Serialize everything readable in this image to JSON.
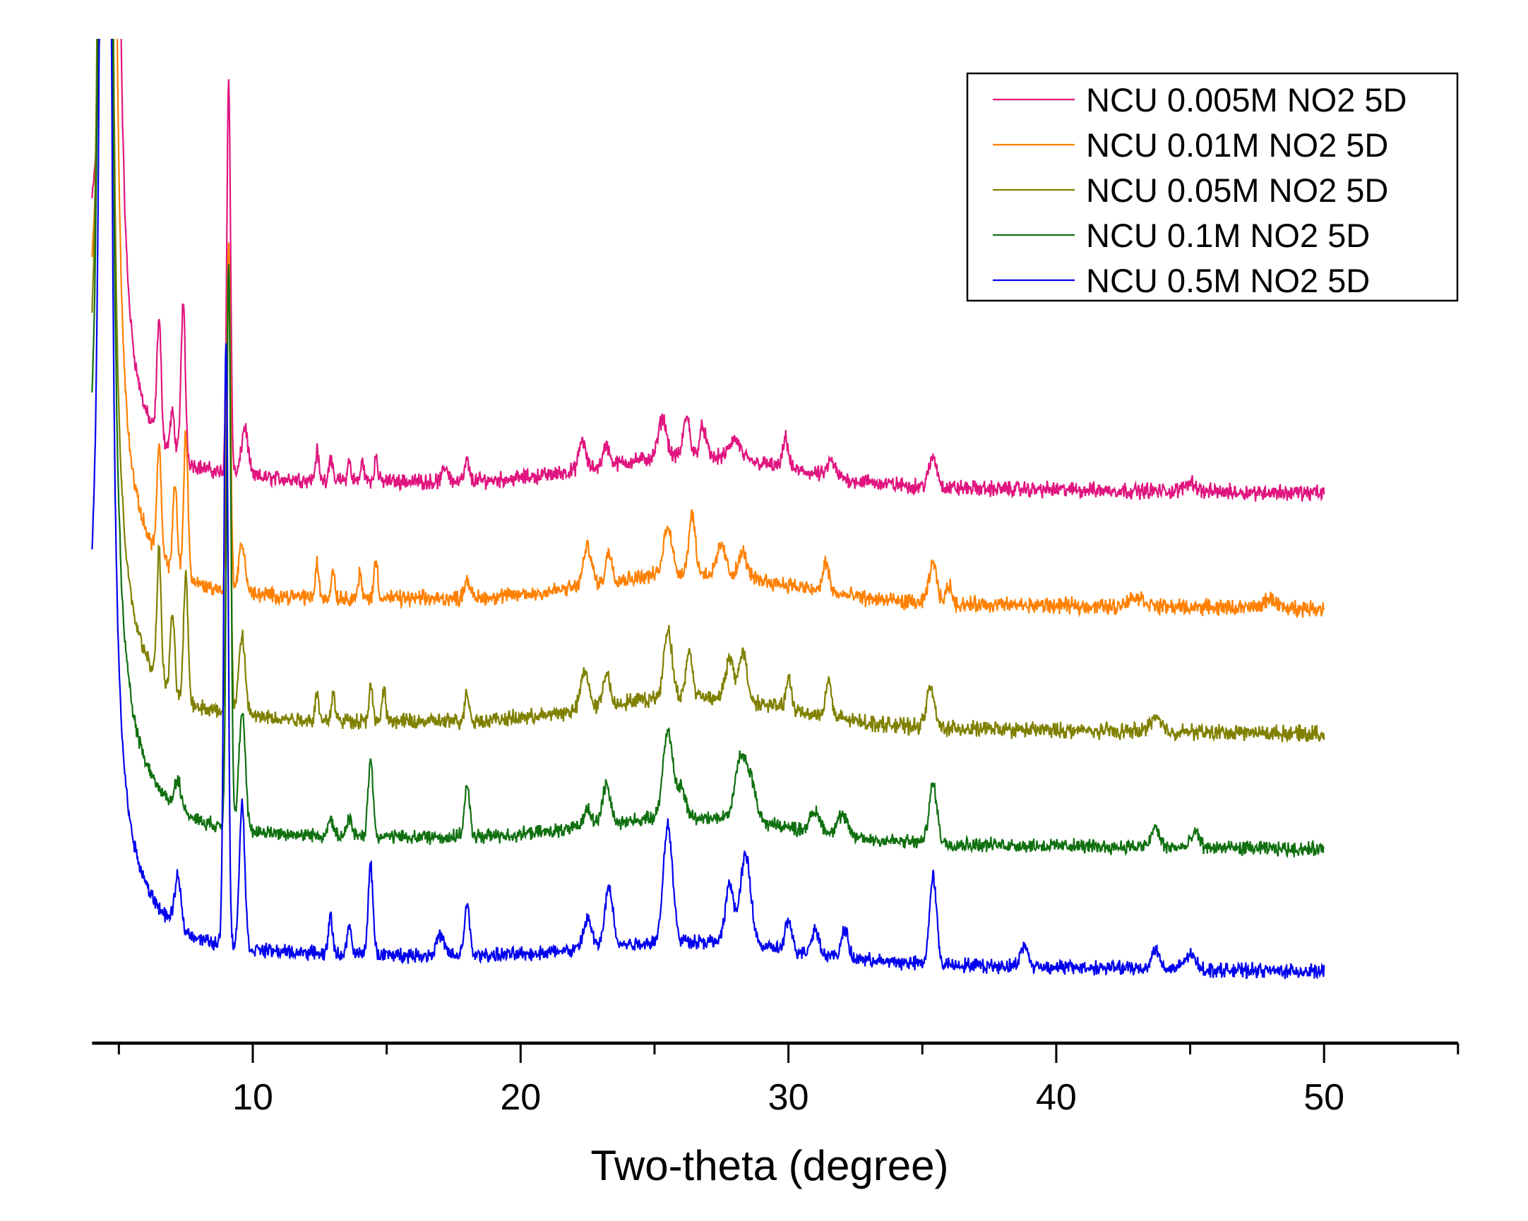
{
  "chart_data": {
    "type": "line",
    "title": "",
    "xlabel": "Two-theta (degree)",
    "ylabel": "",
    "xlim": [
      4,
      55
    ],
    "ylim": [
      0,
      102.6
    ],
    "x_range_data": [
      4,
      50
    ],
    "x_step": 0.02,
    "x_ticks_major": [
      10,
      20,
      30,
      40,
      50
    ],
    "x_tick_labels": [
      "10",
      "20",
      "30",
      "40",
      "50"
    ],
    "x_ticks_minor": [
      5,
      15,
      25,
      35,
      45,
      55
    ],
    "grid": false,
    "legend_position": "top-right",
    "series": [
      {
        "name": "NCU 0.005M NO2 5D",
        "color": "#e0157f",
        "baseline": [
          57.5,
          56.2
        ],
        "decay": 9,
        "noise": 1.0,
        "hump": 3,
        "peaks": [
          [
            4.7,
            600,
            0.1
          ],
          [
            6.5,
            12,
            0.08
          ],
          [
            7.0,
            4,
            0.08
          ],
          [
            7.4,
            16,
            0.08
          ],
          [
            9.1,
            40,
            0.07
          ],
          [
            9.7,
            5,
            0.12
          ],
          [
            12.4,
            3,
            0.06
          ],
          [
            12.9,
            2.5,
            0.06
          ],
          [
            13.6,
            2,
            0.06
          ],
          [
            14.1,
            2,
            0.06
          ],
          [
            14.6,
            2.5,
            0.06
          ],
          [
            17.2,
            1.5,
            0.1
          ],
          [
            18,
            2,
            0.08
          ],
          [
            22.3,
            3,
            0.12
          ],
          [
            23.2,
            2,
            0.12
          ],
          [
            25.3,
            4,
            0.15
          ],
          [
            26.2,
            4,
            0.12
          ],
          [
            26.8,
            3,
            0.12
          ],
          [
            28,
            2,
            0.2
          ],
          [
            29.9,
            3,
            0.1
          ],
          [
            31.6,
            1.5,
            0.15
          ],
          [
            35.4,
            3,
            0.15
          ],
          [
            45,
            1,
            0.2
          ]
        ]
      },
      {
        "name": "NCU 0.01M NO2 5D",
        "color": "#ff8000",
        "baseline": [
          45.5,
          44.4
        ],
        "decay": 10,
        "noise": 1.0,
        "hump": 3,
        "peaks": [
          [
            4.6,
            600,
            0.1
          ],
          [
            6.5,
            11,
            0.08
          ],
          [
            7.1,
            9,
            0.08
          ],
          [
            7.5,
            15,
            0.08
          ],
          [
            9.1,
            36,
            0.07
          ],
          [
            9.6,
            5,
            0.12
          ],
          [
            12.4,
            3.5,
            0.06
          ],
          [
            13,
            3,
            0.06
          ],
          [
            14,
            2.5,
            0.06
          ],
          [
            14.6,
            4,
            0.07
          ],
          [
            18,
            2,
            0.1
          ],
          [
            22.5,
            4,
            0.15
          ],
          [
            23.3,
            3,
            0.12
          ],
          [
            25.5,
            5,
            0.15
          ],
          [
            26.4,
            6,
            0.12
          ],
          [
            27.5,
            3,
            0.15
          ],
          [
            28.3,
            2.5,
            0.15
          ],
          [
            31.4,
            3,
            0.12
          ],
          [
            35.4,
            4,
            0.15
          ],
          [
            36,
            2,
            0.1
          ],
          [
            43,
            1,
            0.3
          ],
          [
            48,
            1,
            0.2
          ]
        ]
      },
      {
        "name": "NCU 0.05M NO2 5D",
        "color": "#808000",
        "baseline": [
          33,
          31.6
        ],
        "decay": 10,
        "noise": 1.0,
        "hump": 3,
        "peaks": [
          [
            4.5,
            600,
            0.1
          ],
          [
            6.5,
            13,
            0.08
          ],
          [
            7.0,
            8,
            0.08
          ],
          [
            7.5,
            13,
            0.08
          ],
          [
            9.1,
            45,
            0.07
          ],
          [
            9.6,
            8,
            0.12
          ],
          [
            12.4,
            3,
            0.06
          ],
          [
            13,
            3,
            0.06
          ],
          [
            14.4,
            3.5,
            0.07
          ],
          [
            14.9,
            3,
            0.07
          ],
          [
            18,
            3,
            0.08
          ],
          [
            22.4,
            4,
            0.15
          ],
          [
            23.2,
            3.5,
            0.12
          ],
          [
            25.5,
            7,
            0.15
          ],
          [
            26.3,
            4.5,
            0.12
          ],
          [
            27.8,
            4,
            0.15
          ],
          [
            28.3,
            5,
            0.15
          ],
          [
            30,
            3,
            0.1
          ],
          [
            31.5,
            4,
            0.1
          ],
          [
            35.3,
            4,
            0.15
          ],
          [
            43.7,
            1.5,
            0.2
          ]
        ]
      },
      {
        "name": "NCU 0.1M NO2 5D",
        "color": "#107010",
        "baseline": [
          21.2,
          19.8
        ],
        "decay": 12,
        "noise": 0.9,
        "hump": 2.5,
        "peaks": [
          [
            4.5,
            600,
            0.1
          ],
          [
            7.2,
            3,
            0.12
          ],
          [
            9.1,
            58,
            0.08
          ],
          [
            9.6,
            12,
            0.12
          ],
          [
            12.9,
            2,
            0.08
          ],
          [
            13.6,
            2,
            0.08
          ],
          [
            14.4,
            8,
            0.09
          ],
          [
            18,
            5,
            0.1
          ],
          [
            22.5,
            2,
            0.15
          ],
          [
            23.2,
            4,
            0.15
          ],
          [
            25.5,
            9,
            0.18
          ],
          [
            26,
            3,
            0.15
          ],
          [
            28.2,
            6,
            0.2
          ],
          [
            28.6,
            4,
            0.2
          ],
          [
            31,
            2,
            0.2
          ],
          [
            32,
            2,
            0.2
          ],
          [
            35.4,
            6,
            0.15
          ],
          [
            43.7,
            2,
            0.15
          ],
          [
            45.2,
            1.5,
            0.15
          ]
        ]
      },
      {
        "name": "NCU 0.5M NO2 5D",
        "color": "#0000ee",
        "baseline": [
          9.2,
          7.3
        ],
        "decay": 12,
        "noise": 0.9,
        "hump": 2,
        "peaks": [
          [
            4.5,
            500,
            0.1
          ],
          [
            7.2,
            5,
            0.12
          ],
          [
            9.0,
            62,
            0.08
          ],
          [
            9.6,
            15,
            0.1
          ],
          [
            12.9,
            4,
            0.07
          ],
          [
            13.6,
            3,
            0.07
          ],
          [
            14.4,
            9,
            0.09
          ],
          [
            17,
            2,
            0.15
          ],
          [
            18,
            5,
            0.1
          ],
          [
            22.5,
            3,
            0.15
          ],
          [
            23.3,
            6,
            0.15
          ],
          [
            25.5,
            12,
            0.17
          ],
          [
            27.8,
            6,
            0.15
          ],
          [
            28.4,
            9,
            0.2
          ],
          [
            30,
            3,
            0.12
          ],
          [
            31,
            2.5,
            0.15
          ],
          [
            32.1,
            3,
            0.12
          ],
          [
            35.4,
            9,
            0.13
          ],
          [
            38.8,
            2,
            0.15
          ],
          [
            43.7,
            2,
            0.15
          ],
          [
            45,
            1.5,
            0.2
          ]
        ]
      }
    ]
  }
}
